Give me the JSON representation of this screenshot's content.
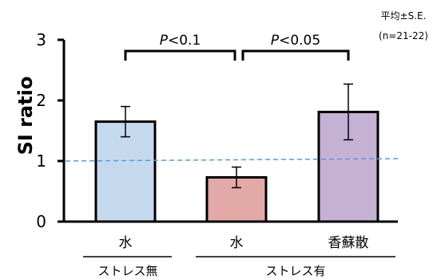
{
  "chart_data": {
    "type": "bar",
    "categories": [
      "水",
      "水",
      "香蘇散"
    ],
    "groups": [
      {
        "label": "ストレス無",
        "members": [
          0
        ]
      },
      {
        "label": "ストレス有",
        "members": [
          1,
          2
        ]
      }
    ],
    "values": [
      1.65,
      0.73,
      1.81
    ],
    "errors": [
      0.25,
      0.17,
      0.46
    ],
    "bar_colors": [
      "#c5d9ee",
      "#e3a9a7",
      "#c5b1d4"
    ],
    "ylabel": "SI ratio",
    "ylim": [
      0,
      3
    ],
    "yticks": [
      0,
      1,
      2,
      3
    ],
    "ytick_labels": [
      "0",
      "1",
      "2",
      "3"
    ],
    "reference_line": {
      "y": 1,
      "color": "#5b9bd5",
      "style": "dashed"
    },
    "comparisons": [
      {
        "from": 0,
        "to": 1,
        "label_prefix": "P",
        "label_suffix": "<0.1"
      },
      {
        "from": 1,
        "to": 2,
        "label_prefix": "P",
        "label_suffix": "<0.05"
      }
    ],
    "note_line1": "平均±S.E.",
    "note_line2": "(n=21-22)"
  }
}
